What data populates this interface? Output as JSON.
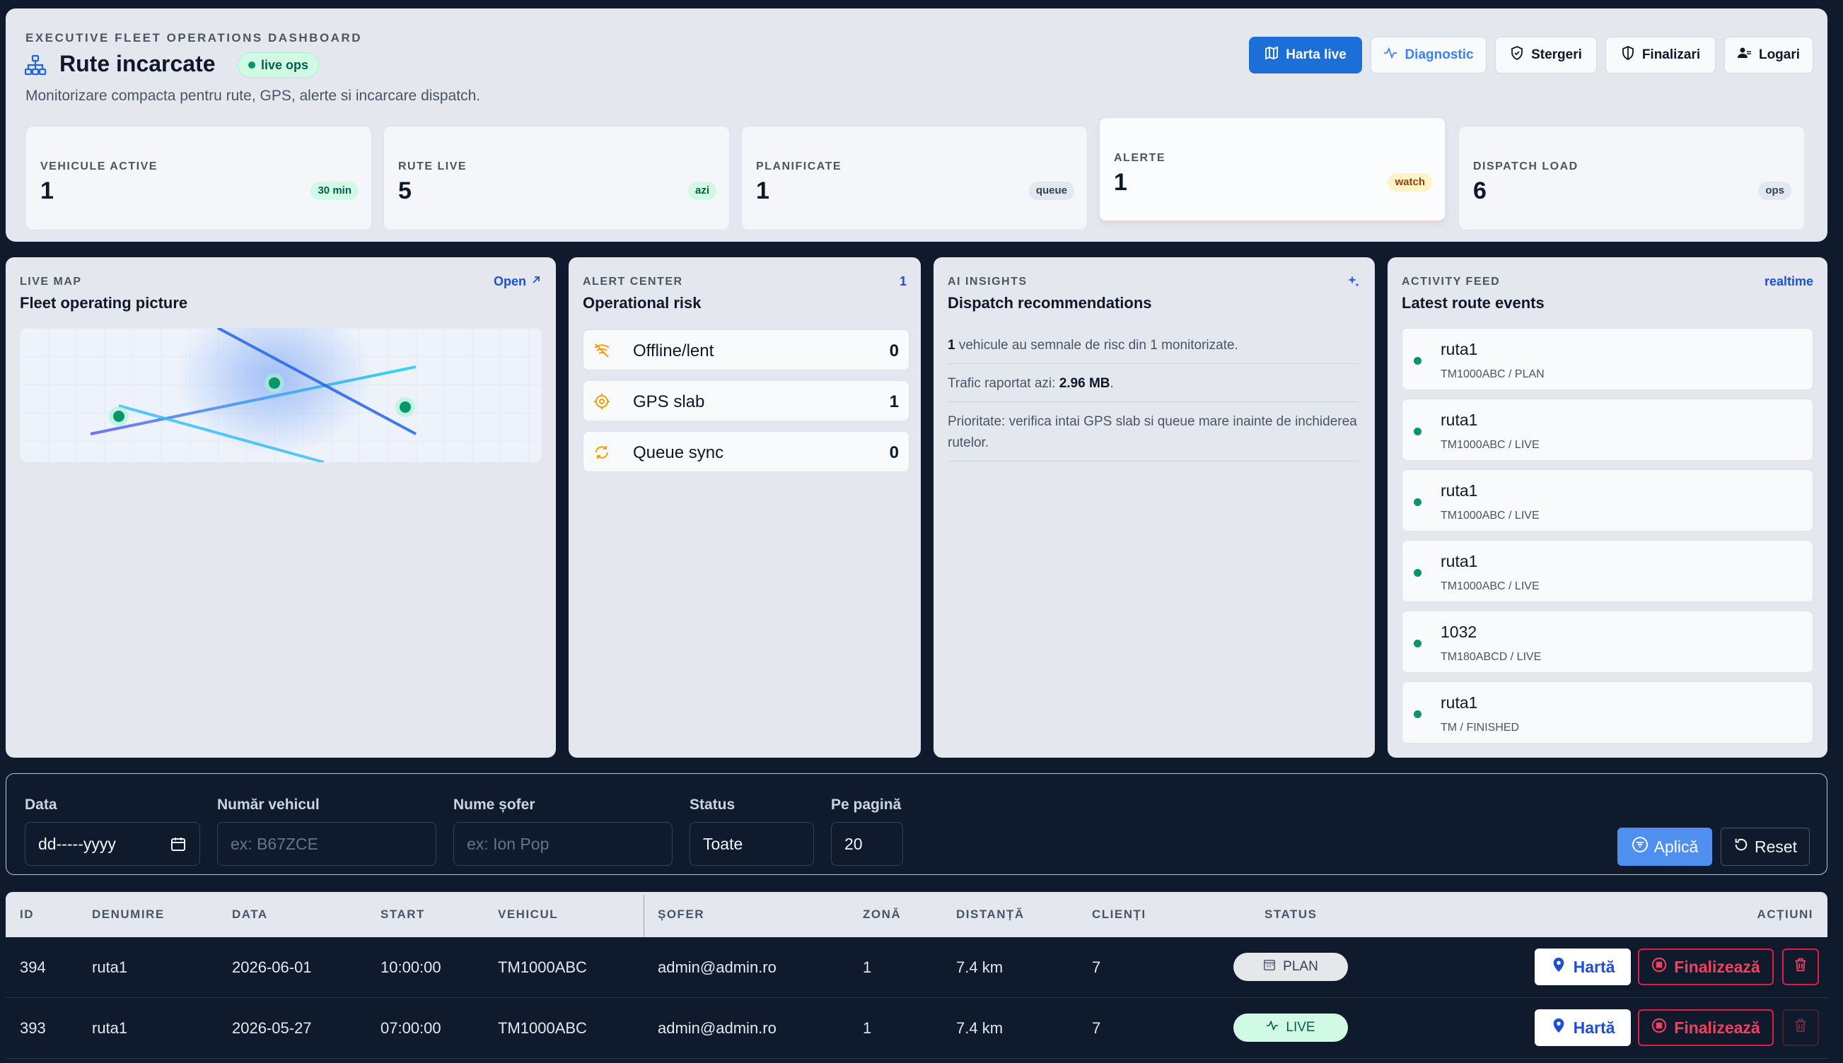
{
  "header": {
    "eyebrow": "EXECUTIVE FLEET OPERATIONS DASHBOARD",
    "title": "Rute incarcate",
    "live_badge": "live ops",
    "subtitle": "Monitorizare compacta pentru rute, GPS, alerte si incarcare dispatch.",
    "buttons": [
      {
        "label": "Harta live",
        "icon": "map-icon",
        "active": true
      },
      {
        "label": "Diagnostic",
        "icon": "activity-icon"
      },
      {
        "label": "Stergeri",
        "icon": "shield-icon"
      },
      {
        "label": "Finalizari",
        "icon": "shield-half-icon"
      },
      {
        "label": "Logari",
        "icon": "users-icon"
      }
    ]
  },
  "kpis": [
    {
      "label": "VEHICULE ACTIVE",
      "value": "1",
      "chip": "30 min",
      "chip_bg": "#d1fae5",
      "chip_color": "#065f46"
    },
    {
      "label": "RUTE LIVE",
      "value": "5",
      "chip": "azi",
      "chip_bg": "#d1fae5",
      "chip_color": "#065f46"
    },
    {
      "label": "PLANIFICATE",
      "value": "1",
      "chip": "queue",
      "chip_bg": "#e2e8f0",
      "chip_color": "#334155"
    },
    {
      "label": "ALERTE",
      "value": "1",
      "chip": "watch",
      "chip_bg": "#fef3c7",
      "chip_color": "#92400e"
    },
    {
      "label": "DISPATCH LOAD",
      "value": "6",
      "chip": "ops",
      "chip_bg": "#e2e8f0",
      "chip_color": "#334155"
    }
  ],
  "live_map": {
    "eyebrow": "LIVE MAP",
    "link": "Open",
    "title": "Fleet operating picture"
  },
  "alert_center": {
    "eyebrow": "ALERT CENTER",
    "count": "1",
    "title": "Operational risk",
    "items": [
      {
        "label": "Offline/lent",
        "value": "0",
        "icon": "signal-off-icon"
      },
      {
        "label": "GPS slab",
        "value": "1",
        "icon": "crosshair-icon"
      },
      {
        "label": "Queue sync",
        "value": "0",
        "icon": "refresh-icon"
      }
    ]
  },
  "ai_insights": {
    "eyebrow": "AI INSIGHTS",
    "title": "Dispatch recommendations",
    "line1_bold": "1",
    "line1_rest": " vehicule au semnale de risc din 1 monitorizate.",
    "line2_pre": "Trafic raportat azi: ",
    "line2_bold": "2.96 MB",
    "line2_post": ".",
    "line3": "Prioritate: verifica intai GPS slab si queue mare inainte de inchiderea rutelor."
  },
  "activity": {
    "eyebrow": "ACTIVITY FEED",
    "badge": "realtime",
    "title": "Latest route events",
    "events": [
      {
        "title": "ruta1",
        "sub": "TM1000ABC / PLAN"
      },
      {
        "title": "ruta1",
        "sub": "TM1000ABC / LIVE"
      },
      {
        "title": "ruta1",
        "sub": "TM1000ABC / LIVE"
      },
      {
        "title": "ruta1",
        "sub": "TM1000ABC / LIVE"
      },
      {
        "title": "1032",
        "sub": "TM180ABCD / LIVE"
      },
      {
        "title": "ruta1",
        "sub": "TM / FINISHED"
      }
    ]
  },
  "filters": {
    "date_label": "Data",
    "date_value": "dd-----yyyy",
    "vehicle_label": "Număr vehicul",
    "vehicle_placeholder": "ex: B67ZCE",
    "driver_label": "Nume șofer",
    "driver_placeholder": "ex: Ion Pop",
    "status_label": "Status",
    "status_value": "Toate",
    "per_page_label": "Pe pagină",
    "per_page_value": "20",
    "apply": "Aplică",
    "reset": "Reset"
  },
  "table": {
    "columns": [
      "ID",
      "DENUMIRE",
      "DATA",
      "START",
      "VEHICUL",
      "ȘOFER",
      "ZONĂ",
      "DISTANȚĂ",
      "CLIENȚI",
      "STATUS",
      "ACȚIUNI"
    ],
    "rows": [
      {
        "id": "394",
        "name": "ruta1",
        "date": "2026-06-01",
        "start": "10:00:00",
        "vehicle": "TM1000ABC",
        "driver": "admin@admin.ro",
        "zone": "1",
        "distance": "7.4 km",
        "clients": "7",
        "status": "PLAN"
      },
      {
        "id": "393",
        "name": "ruta1",
        "date": "2026-05-27",
        "start": "07:00:00",
        "vehicle": "TM1000ABC",
        "driver": "admin@admin.ro",
        "zone": "1",
        "distance": "7.4 km",
        "clients": "7",
        "status": "LIVE"
      }
    ],
    "map_btn": "Hartă",
    "finish_btn": "Finalizează"
  },
  "colors": {
    "accent": "#1d6fd8",
    "danger": "#e11d48",
    "live": "#059669",
    "background": "#0f1b2d"
  }
}
